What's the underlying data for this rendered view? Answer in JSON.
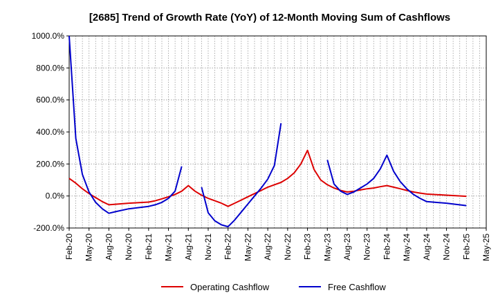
{
  "chart_data": {
    "type": "line",
    "title": "[2685]  Trend of Growth Rate (YoY) of 12-Month Moving Sum of Cashflows",
    "xlabel": "",
    "ylabel": "",
    "ylim": [
      -200,
      1000
    ],
    "yticks": [
      -200,
      0,
      200,
      400,
      600,
      800,
      1000
    ],
    "ytick_labels": [
      "-200.0%",
      "0.0%",
      "200.0%",
      "400.0%",
      "600.0%",
      "800.0%",
      "1000.0%"
    ],
    "xticks": [
      "2020-02",
      "2020-05",
      "2020-08",
      "2020-11",
      "2021-02",
      "2021-05",
      "2021-08",
      "2021-11",
      "2022-02",
      "2022-05",
      "2022-08",
      "2022-11",
      "2023-02",
      "2023-05",
      "2023-08",
      "2023-11",
      "2024-02",
      "2024-05",
      "2024-08",
      "2024-11",
      "2025-02",
      "2025-05"
    ],
    "xtick_labels": [
      "Feb-20",
      "May-20",
      "Aug-20",
      "Nov-20",
      "Feb-21",
      "May-21",
      "Aug-21",
      "Nov-21",
      "Feb-22",
      "May-22",
      "Aug-22",
      "Nov-22",
      "Feb-23",
      "May-23",
      "Aug-23",
      "Nov-23",
      "Feb-24",
      "May-24",
      "Aug-24",
      "Nov-24",
      "Feb-25",
      "May-25"
    ],
    "grid": true,
    "legend_position": "bottom",
    "series": [
      {
        "name": "Operating Cashflow",
        "color": "#dd0000",
        "points": [
          [
            "2020-02",
            110
          ],
          [
            "2020-03",
            80
          ],
          [
            "2020-04",
            45
          ],
          [
            "2020-05",
            15
          ],
          [
            "2020-06",
            -10
          ],
          [
            "2020-07",
            -35
          ],
          [
            "2020-08",
            -55
          ],
          [
            "2020-11",
            -45
          ],
          [
            "2021-02",
            -38
          ],
          [
            "2021-03",
            -30
          ],
          [
            "2021-04",
            -18
          ],
          [
            "2021-05",
            -5
          ],
          [
            "2021-06",
            10
          ],
          [
            "2021-07",
            30
          ],
          [
            "2021-08",
            65
          ],
          [
            "2021-09",
            30
          ],
          [
            "2021-10",
            5
          ],
          [
            "2021-11",
            -15
          ],
          [
            "2021-12",
            -30
          ],
          [
            "2022-01",
            -45
          ],
          [
            "2022-02",
            -65
          ],
          [
            "2022-03",
            -45
          ],
          [
            "2022-04",
            -25
          ],
          [
            "2022-05",
            -5
          ],
          [
            "2022-06",
            15
          ],
          [
            "2022-07",
            35
          ],
          [
            "2022-08",
            55
          ],
          [
            "2022-09",
            70
          ],
          [
            "2022-10",
            85
          ],
          [
            "2022-11",
            110
          ],
          [
            "2022-12",
            145
          ],
          [
            "2023-01",
            200
          ],
          [
            "2023-02",
            285
          ],
          [
            "2023-03",
            165
          ],
          [
            "2023-04",
            100
          ],
          [
            "2023-05",
            70
          ],
          [
            "2023-06",
            50
          ],
          [
            "2023-07",
            35
          ],
          [
            "2023-08",
            25
          ],
          [
            "2023-09",
            30
          ],
          [
            "2023-10",
            38
          ],
          [
            "2023-11",
            45
          ],
          [
            "2023-12",
            50
          ],
          [
            "2024-01",
            58
          ],
          [
            "2024-02",
            65
          ],
          [
            "2024-03",
            55
          ],
          [
            "2024-04",
            45
          ],
          [
            "2024-05",
            35
          ],
          [
            "2024-06",
            25
          ],
          [
            "2024-07",
            18
          ],
          [
            "2024-08",
            12
          ],
          [
            "2024-11",
            5
          ],
          [
            "2025-02",
            -2
          ]
        ]
      },
      {
        "name": "Free Cashflow",
        "color": "#0000cc",
        "segments": [
          [
            [
              "2020-02",
              1000
            ],
            [
              "2020-03",
              360
            ],
            [
              "2020-04",
              135
            ],
            [
              "2020-05",
              25
            ],
            [
              "2020-06",
              -40
            ],
            [
              "2020-07",
              -80
            ],
            [
              "2020-08",
              -108
            ],
            [
              "2020-09",
              -98
            ],
            [
              "2020-11",
              -80
            ],
            [
              "2021-02",
              -65
            ],
            [
              "2021-03",
              -55
            ],
            [
              "2021-04",
              -40
            ],
            [
              "2021-05",
              -15
            ],
            [
              "2021-06",
              30
            ],
            [
              "2021-07",
              185
            ]
          ],
          [
            [
              "2021-10",
              55
            ],
            [
              "2021-11",
              -105
            ],
            [
              "2021-12",
              -155
            ],
            [
              "2022-01",
              -180
            ],
            [
              "2022-02",
              -192
            ],
            [
              "2022-03",
              -150
            ],
            [
              "2022-04",
              -100
            ],
            [
              "2022-05",
              -50
            ],
            [
              "2022-06",
              0
            ],
            [
              "2022-07",
              50
            ],
            [
              "2022-08",
              105
            ],
            [
              "2022-09",
              190
            ],
            [
              "2022-10",
              455
            ]
          ],
          [
            [
              "2023-05",
              225
            ],
            [
              "2023-06",
              75
            ],
            [
              "2023-07",
              30
            ],
            [
              "2023-08",
              10
            ],
            [
              "2023-09",
              25
            ],
            [
              "2023-10",
              50
            ],
            [
              "2023-11",
              75
            ],
            [
              "2023-12",
              110
            ],
            [
              "2024-01",
              170
            ],
            [
              "2024-02",
              255
            ],
            [
              "2024-03",
              155
            ],
            [
              "2024-04",
              90
            ],
            [
              "2024-05",
              45
            ],
            [
              "2024-06",
              10
            ],
            [
              "2024-07",
              -15
            ],
            [
              "2024-08",
              -35
            ],
            [
              "2024-11",
              -45
            ],
            [
              "2025-02",
              -60
            ]
          ]
        ]
      }
    ]
  }
}
